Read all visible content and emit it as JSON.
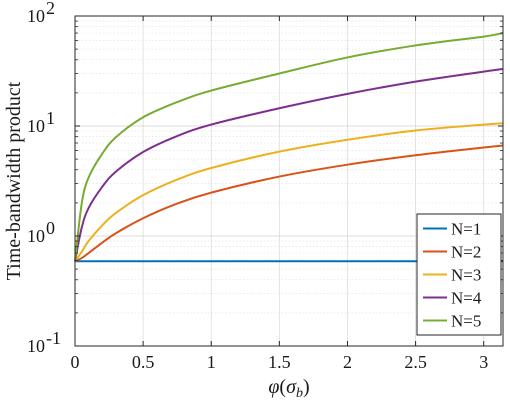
{
  "chart_data": {
    "type": "line",
    "xlabel": "φ(σ_b)",
    "ylabel": "Time-bandwidth product",
    "xlim": [
      0,
      3.1416
    ],
    "ylim": [
      0.1,
      100
    ],
    "yscale": "log",
    "grid": true,
    "minor_grid": true,
    "legend_position": "bottom-right",
    "x_ticks": [
      0,
      0.5,
      1,
      1.5,
      2,
      2.5,
      3
    ],
    "x_tick_labels": [
      "0",
      "0.5",
      "1",
      "1.5",
      "2",
      "2.5",
      "3"
    ],
    "y_ticks": [
      0.1,
      1,
      10,
      100
    ],
    "y_tick_labels": [
      {
        "base": "10",
        "exp": "-1"
      },
      {
        "base": "10",
        "exp": "0"
      },
      {
        "base": "10",
        "exp": "1"
      },
      {
        "base": "10",
        "exp": "2"
      }
    ],
    "x": [
      0,
      0.05,
      0.1,
      0.2,
      0.3,
      0.5,
      0.75,
      1.0,
      1.5,
      2.0,
      2.5,
      3.0,
      3.1416
    ],
    "series": [
      {
        "name": "N=1",
        "color": "#0072BD",
        "values": [
          0.59,
          0.59,
          0.59,
          0.59,
          0.59,
          0.59,
          0.59,
          0.59,
          0.59,
          0.59,
          0.59,
          0.59,
          0.59
        ]
      },
      {
        "name": "N=2",
        "color": "#D95319",
        "values": [
          0.59,
          0.63,
          0.7,
          0.87,
          1.06,
          1.45,
          1.97,
          2.48,
          3.47,
          4.45,
          5.42,
          6.38,
          6.65
        ]
      },
      {
        "name": "N=3",
        "color": "#EDB120",
        "values": [
          0.59,
          0.72,
          0.9,
          1.25,
          1.62,
          2.35,
          3.26,
          4.15,
          5.85,
          7.5,
          9.1,
          10.3,
          10.6
        ]
      },
      {
        "name": "N=4",
        "color": "#7E2F8E",
        "values": [
          0.59,
          1.2,
          1.8,
          2.8,
          3.85,
          5.8,
          8.1,
          10.3,
          14.5,
          19.6,
          25.3,
          31.2,
          33.0
        ]
      },
      {
        "name": "N=5",
        "color": "#77AC30",
        "values": [
          0.59,
          2.0,
          3.4,
          5.6,
          7.9,
          12.0,
          16.5,
          21.0,
          30.0,
          42.0,
          54.0,
          65.0,
          70.0
        ]
      }
    ]
  }
}
